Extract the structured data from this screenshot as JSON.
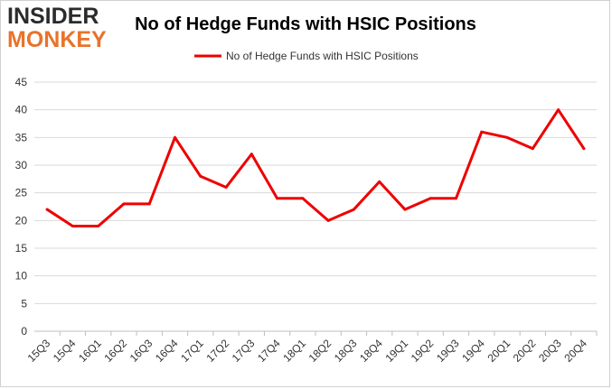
{
  "brand": {
    "logo_line1": "INSIDER",
    "logo_line2": "MONKEY"
  },
  "chart_data": {
    "type": "line",
    "title": "No of Hedge Funds with HSIC Positions",
    "xlabel": "",
    "ylabel": "",
    "categories": [
      "15Q3",
      "15Q4",
      "16Q1",
      "16Q2",
      "16Q3",
      "16Q4",
      "17Q1",
      "17Q2",
      "17Q3",
      "17Q4",
      "18Q1",
      "18Q2",
      "18Q3",
      "18Q4",
      "19Q1",
      "19Q2",
      "19Q3",
      "19Q4",
      "20Q1",
      "20Q2",
      "20Q3",
      "20Q4"
    ],
    "series": [
      {
        "name": "No of Hedge Funds with HSIC Positions",
        "color": "#ee0000",
        "values": [
          22,
          19,
          19,
          23,
          23,
          35,
          28,
          26,
          32,
          24,
          24,
          20,
          22,
          27,
          22,
          24,
          24,
          36,
          35,
          33,
          40,
          33
        ]
      }
    ],
    "ylim": [
      0,
      45
    ],
    "yticks": [
      0,
      5,
      10,
      15,
      20,
      25,
      30,
      35,
      40,
      45
    ],
    "grid": true,
    "legend_position": "top-center"
  }
}
